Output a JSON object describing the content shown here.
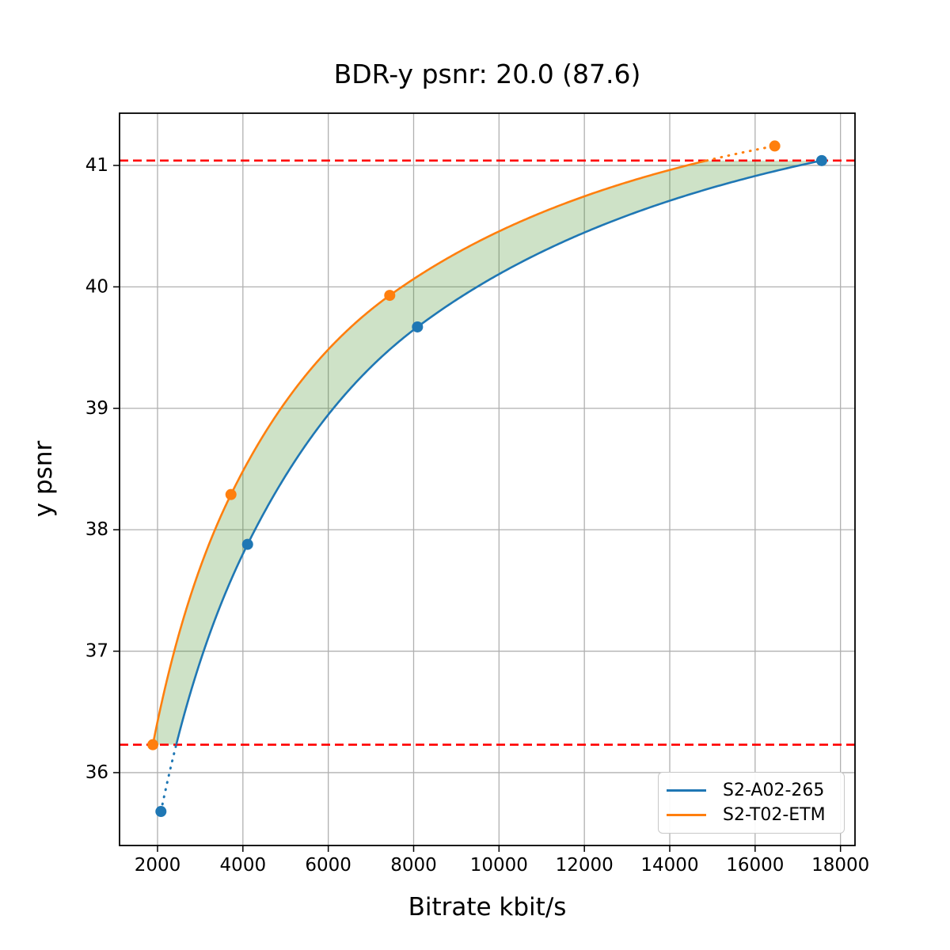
{
  "chart_data": {
    "type": "line",
    "title": "BDR-y psnr: 20.0 (87.6)",
    "xlabel": "Bitrate kbit/s",
    "ylabel": "y psnr",
    "xlim": [
      1110,
      18340
    ],
    "ylim": [
      35.4,
      41.43
    ],
    "xticks": [
      2000,
      4000,
      6000,
      8000,
      10000,
      12000,
      14000,
      16000,
      18000
    ],
    "yticks": [
      36,
      37,
      38,
      39,
      40,
      41
    ],
    "grid": true,
    "grid_color": "#b0b0b0",
    "background_color": "#ffffff",
    "spine_color": "#000000",
    "series": [
      {
        "name": "S2-A02-265",
        "color": "#1f77b4",
        "x": [
          2080,
          4110,
          8090,
          17560
        ],
        "y": [
          35.68,
          37.88,
          39.67,
          41.04
        ]
      },
      {
        "name": "S2-T02-ETM",
        "color": "#ff7f0e",
        "x": [
          1890,
          3720,
          7440,
          16460
        ],
        "y": [
          36.23,
          38.29,
          39.93,
          41.16
        ]
      }
    ],
    "overlap_interval": {
      "y_min": 36.23,
      "y_max": 41.04,
      "line_color": "#ff0000",
      "line_style": "dashed"
    },
    "shaded_region_color": "rgba(60,140,30,0.25)",
    "curve_style": {
      "solid_within_overlap": true,
      "dotted_outside_overlap": true,
      "interpolation": "pchip-log-bitrate"
    },
    "legend": {
      "position": "lower right"
    }
  }
}
